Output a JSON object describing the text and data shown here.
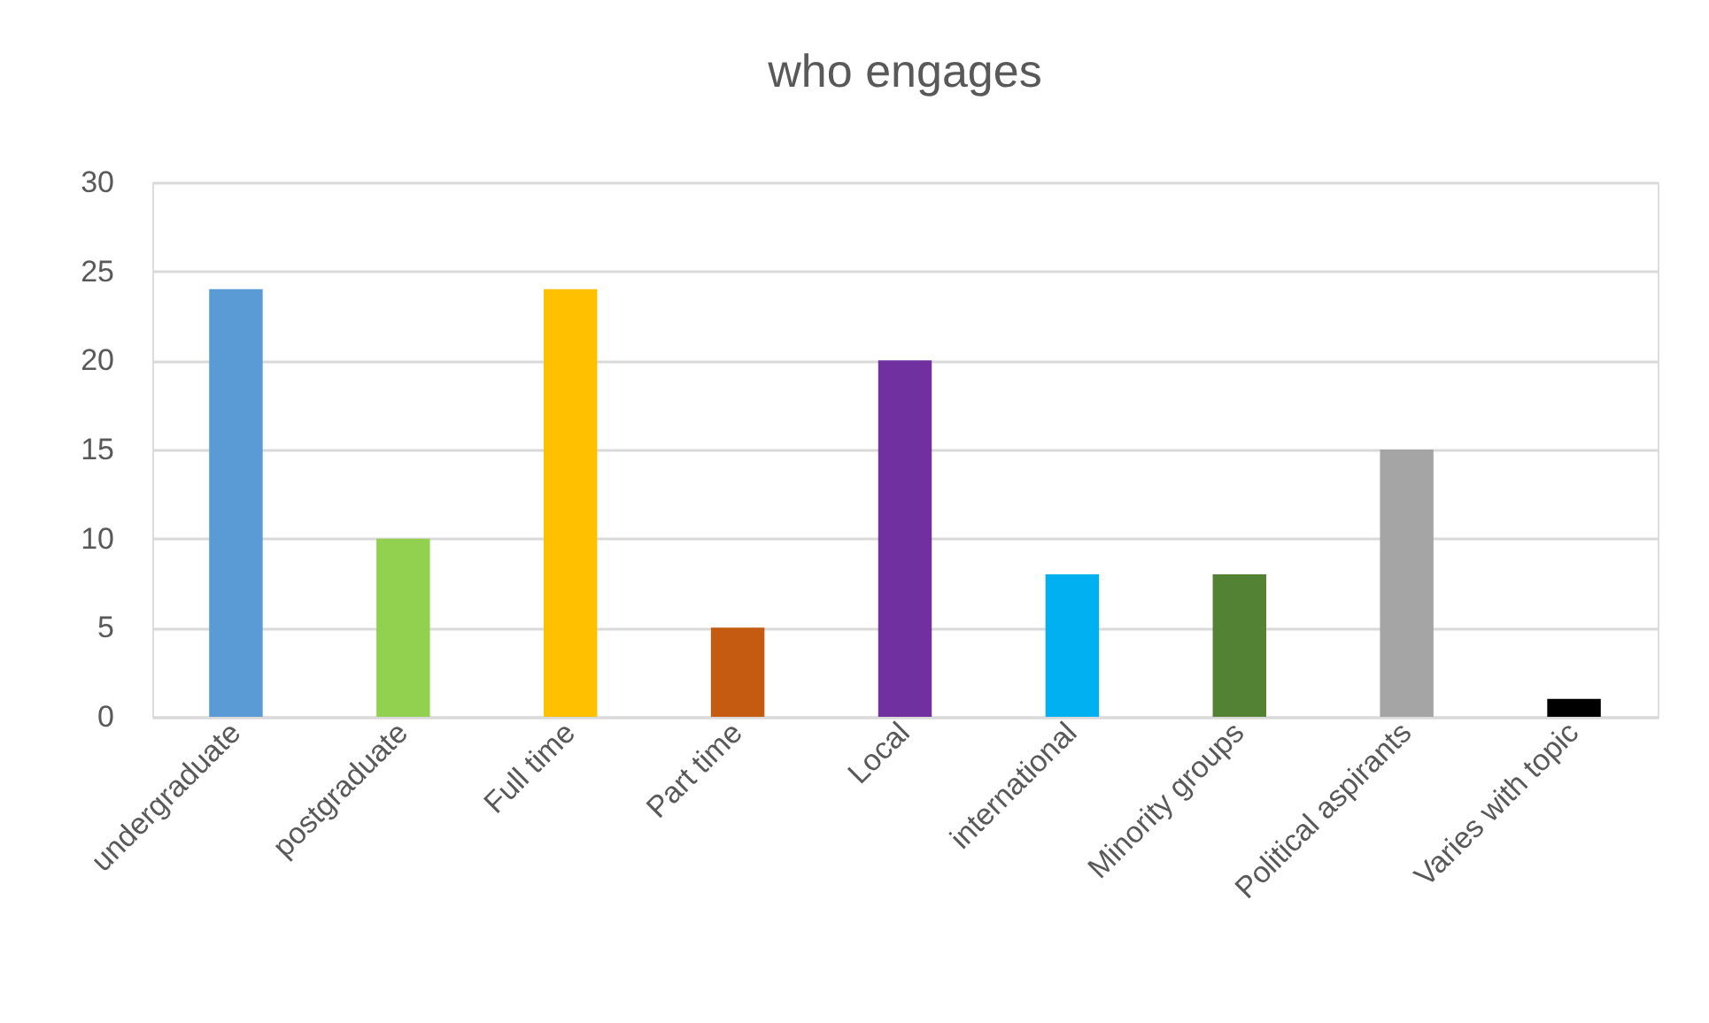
{
  "chart_data": {
    "type": "bar",
    "title": "who engages",
    "categories": [
      "undergraduate",
      "postgraduate",
      "Full time",
      "Part time",
      "Local",
      "international",
      "Minority groups",
      "Political aspirants",
      "Varies with topic"
    ],
    "values": [
      24,
      10,
      24,
      5,
      20,
      8,
      8,
      15,
      1
    ],
    "colors": [
      "#5b9bd5",
      "#92d050",
      "#ffc000",
      "#c55a11",
      "#7030a0",
      "#00b0f0",
      "#548235",
      "#a5a5a5",
      "#000000"
    ],
    "ylim": [
      0,
      30
    ],
    "yticks": [
      0,
      5,
      10,
      15,
      20,
      25,
      30
    ],
    "grid": "y"
  }
}
